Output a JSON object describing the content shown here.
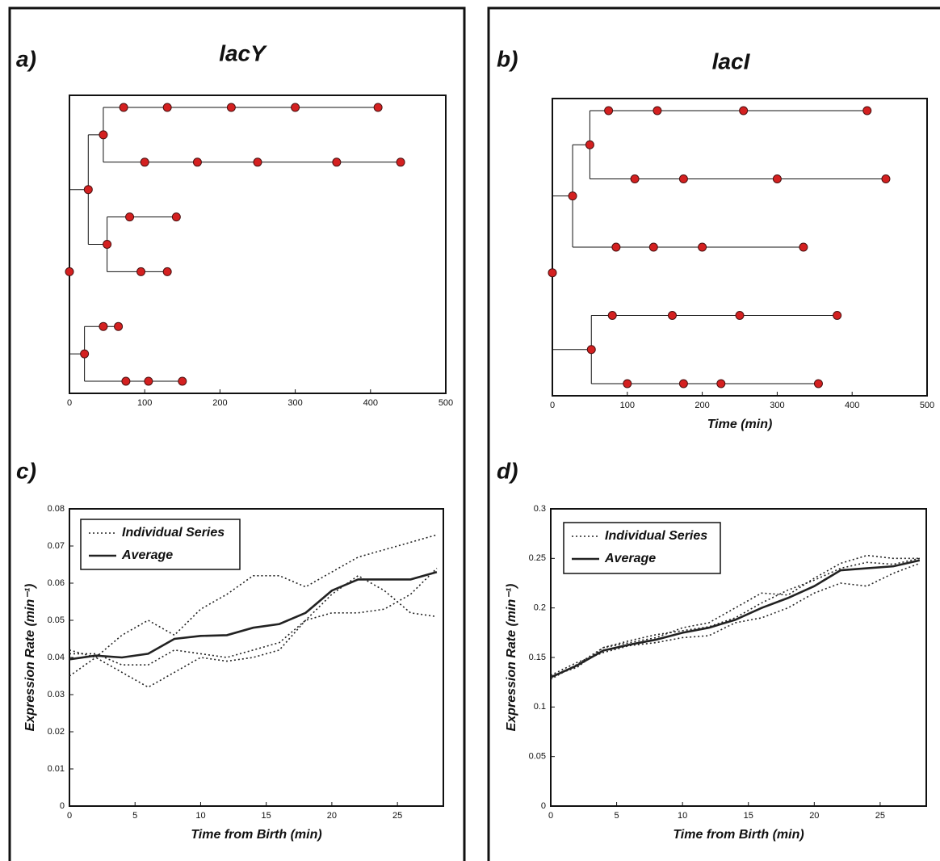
{
  "chart_data": [
    {
      "type": "tree",
      "panel": "a)",
      "title": "lacY",
      "xlim": [
        0,
        500
      ],
      "xticks": [
        0,
        100,
        200,
        300,
        400,
        500
      ],
      "nodes": [
        {
          "t": 0,
          "parent": null
        },
        {
          "t": 25,
          "parent": 0
        },
        {
          "t": 20,
          "parent": 0
        },
        {
          "t": 45,
          "parent": 1
        },
        {
          "t": 50,
          "parent": 1
        },
        {
          "t": 45,
          "parent": 2
        },
        {
          "t": 75,
          "parent": 2
        },
        {
          "t": 72,
          "parent": 3
        },
        {
          "t": 100,
          "parent": 3
        },
        {
          "t": 80,
          "parent": 4
        },
        {
          "t": 95,
          "parent": 4
        },
        {
          "t": 65,
          "parent": 5
        },
        {
          "t": 105,
          "parent": 6
        },
        {
          "t": 130,
          "parent": 7
        },
        {
          "t": 170,
          "parent": 8
        },
        {
          "t": 142,
          "parent": 9
        },
        {
          "t": 130,
          "parent": 10
        },
        {
          "t": 150,
          "parent": 12
        },
        {
          "t": 215,
          "parent": 13
        },
        {
          "t": 250,
          "parent": 14
        },
        {
          "t": 300,
          "parent": 18
        },
        {
          "t": 355,
          "parent": 19
        },
        {
          "t": 410,
          "parent": 20
        },
        {
          "t": 440,
          "parent": 21
        }
      ]
    },
    {
      "type": "tree",
      "panel": "b)",
      "title": "lacI",
      "x_label": "Time (min)",
      "xlim": [
        0,
        500
      ],
      "xticks": [
        0,
        100,
        200,
        300,
        400,
        500
      ],
      "nodes": [
        {
          "t": 0,
          "parent": null
        },
        {
          "t": 27,
          "parent": 0
        },
        {
          "t": 52,
          "parent": 0
        },
        {
          "t": 50,
          "parent": 1
        },
        {
          "t": 85,
          "parent": 1
        },
        {
          "t": 80,
          "parent": 2
        },
        {
          "t": 100,
          "parent": 2
        },
        {
          "t": 75,
          "parent": 3
        },
        {
          "t": 110,
          "parent": 3
        },
        {
          "t": 135,
          "parent": 4
        },
        {
          "t": 160,
          "parent": 5
        },
        {
          "t": 175,
          "parent": 6
        },
        {
          "t": 140,
          "parent": 7
        },
        {
          "t": 175,
          "parent": 8
        },
        {
          "t": 200,
          "parent": 9
        },
        {
          "t": 250,
          "parent": 10
        },
        {
          "t": 225,
          "parent": 11
        },
        {
          "t": 255,
          "parent": 12
        },
        {
          "t": 300,
          "parent": 13
        },
        {
          "t": 335,
          "parent": 14
        },
        {
          "t": 380,
          "parent": 15
        },
        {
          "t": 355,
          "parent": 16
        },
        {
          "t": 420,
          "parent": 17
        },
        {
          "t": 445,
          "parent": 18
        }
      ]
    },
    {
      "type": "line",
      "panel": "c)",
      "x_label": "Time from Birth (min)",
      "y_label": "Expression Rate (min⁻¹)",
      "xlim": [
        0,
        28.5
      ],
      "xticks": [
        0,
        5,
        10,
        15,
        20,
        25
      ],
      "ylim": [
        0,
        0.08
      ],
      "yticks": [
        0,
        0.01,
        0.02,
        0.03,
        0.04,
        0.05,
        0.06,
        0.07,
        0.08
      ],
      "x": [
        0,
        2,
        4,
        6,
        8,
        10,
        12,
        14,
        16,
        18,
        20,
        22,
        24,
        26,
        28
      ],
      "series": [
        {
          "name": "Individual Series",
          "style": "dotted",
          "color": "#222",
          "values": [
            [
              0.035,
              0.04,
              0.046,
              0.05,
              0.046,
              0.053,
              0.057,
              0.062,
              0.062,
              0.059,
              0.063,
              0.067,
              0.069,
              0.071,
              0.073
            ],
            [
              0.042,
              0.04,
              0.036,
              0.032,
              0.036,
              0.04,
              0.039,
              0.04,
              0.042,
              0.05,
              0.057,
              0.062,
              0.058,
              0.052,
              0.051
            ],
            [
              0.041,
              0.041,
              0.038,
              0.038,
              0.042,
              0.041,
              0.04,
              0.042,
              0.044,
              0.05,
              0.052,
              0.052,
              0.053,
              0.057,
              0.064
            ]
          ]
        },
        {
          "name": "Average",
          "style": "solid",
          "color": "#222",
          "values": [
            0.0395,
            0.0405,
            0.04,
            0.041,
            0.045,
            0.0458,
            0.046,
            0.048,
            0.049,
            0.052,
            0.058,
            0.061,
            0.061,
            0.061,
            0.063
          ]
        }
      ]
    },
    {
      "type": "line",
      "panel": "d)",
      "x_label": "Time from Birth (min)",
      "y_label": "Expression Rate (min⁻¹)",
      "xlim": [
        0,
        28.5
      ],
      "xticks": [
        0,
        5,
        10,
        15,
        20,
        25
      ],
      "ylim": [
        0,
        0.3
      ],
      "yticks": [
        0,
        0.05,
        0.1,
        0.15,
        0.2,
        0.25,
        0.3
      ],
      "x": [
        0,
        2,
        4,
        6,
        8,
        10,
        12,
        14,
        16,
        18,
        20,
        22,
        24,
        26,
        28
      ],
      "series": [
        {
          "name": "Individual Series",
          "style": "dotted",
          "color": "#222",
          "values": [
            [
              0.128,
              0.143,
              0.16,
              0.165,
              0.17,
              0.18,
              0.185,
              0.2,
              0.215,
              0.213,
              0.23,
              0.245,
              0.253,
              0.25,
              0.25
            ],
            [
              0.132,
              0.145,
              0.155,
              0.162,
              0.165,
              0.17,
              0.172,
              0.185,
              0.19,
              0.2,
              0.215,
              0.225,
              0.222,
              0.235,
              0.245
            ],
            [
              0.131,
              0.14,
              0.16,
              0.167,
              0.173,
              0.177,
              0.181,
              0.19,
              0.205,
              0.218,
              0.228,
              0.24,
              0.246,
              0.244,
              0.25
            ]
          ]
        },
        {
          "name": "Average",
          "style": "solid",
          "color": "#222",
          "values": [
            0.13,
            0.142,
            0.157,
            0.163,
            0.168,
            0.175,
            0.18,
            0.188,
            0.2,
            0.21,
            0.222,
            0.238,
            0.24,
            0.242,
            0.248
          ]
        }
      ]
    }
  ]
}
